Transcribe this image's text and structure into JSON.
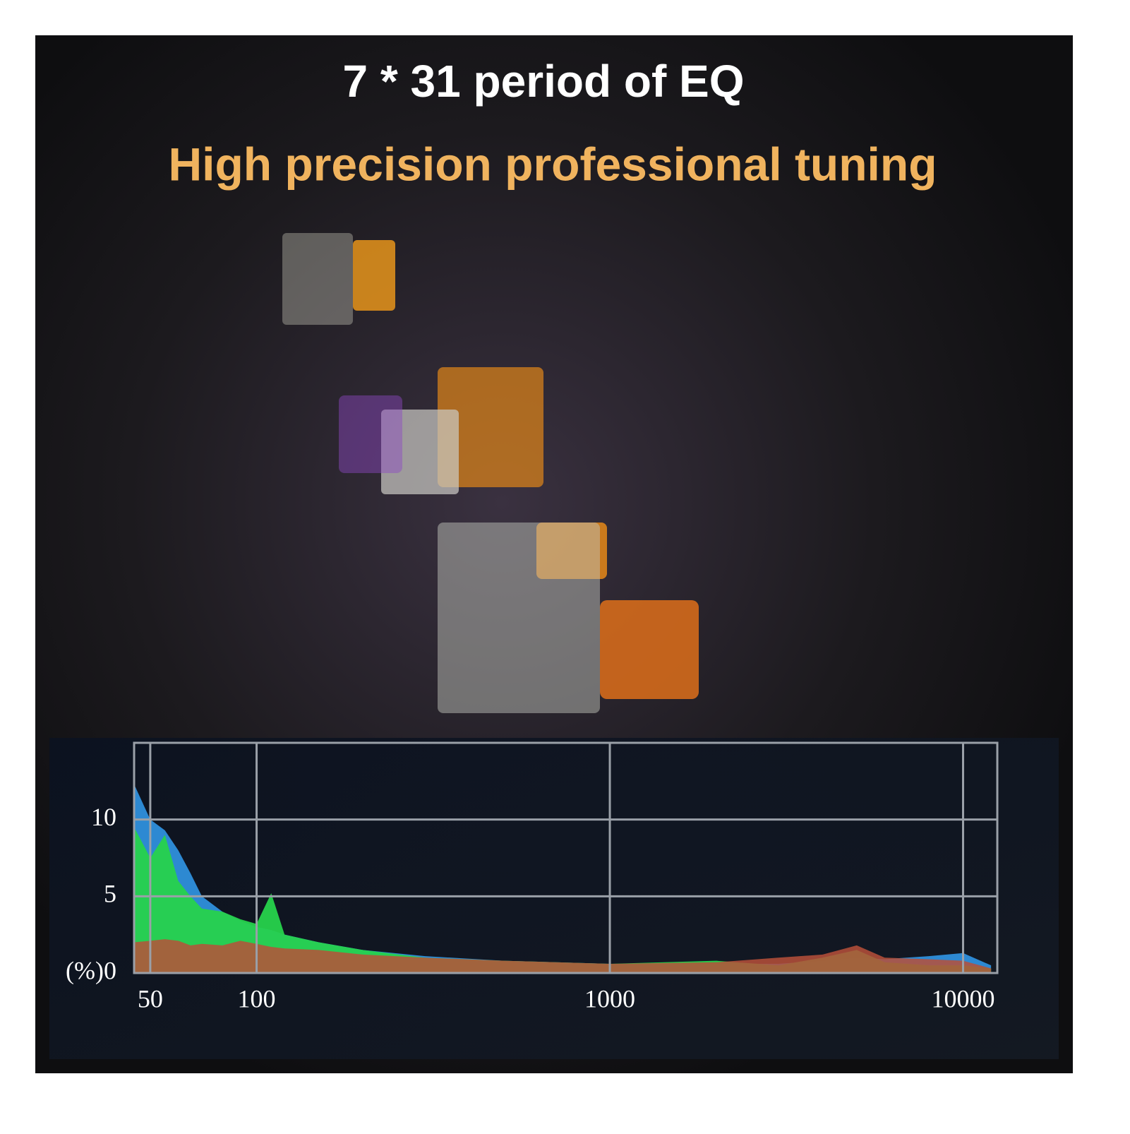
{
  "header": {
    "title": "7 * 31 period of EQ",
    "subtitle": "High precision professional tuning"
  },
  "chart_data": {
    "type": "area",
    "log_x": true,
    "grid": true,
    "x": [
      45,
      50,
      55,
      60,
      65,
      70,
      80,
      90,
      100,
      110,
      120,
      150,
      200,
      300,
      500,
      1000,
      2000,
      3000,
      4000,
      5000,
      6000,
      8000,
      10000,
      12000
    ],
    "series": [
      {
        "name": "blue",
        "color": "#2f8fdc",
        "values": [
          12.3,
          10,
          9.3,
          8,
          6.5,
          5,
          4,
          3.4,
          3,
          2.8,
          2.5,
          2,
          1.5,
          1.1,
          0.8,
          0.6,
          0.6,
          0.6,
          0.8,
          1,
          0.9,
          1.1,
          1.3,
          0.5
        ]
      },
      {
        "name": "green",
        "color": "#27d24c",
        "values": [
          9.5,
          7.5,
          9,
          6,
          5,
          4.2,
          4,
          3.5,
          3.2,
          5.2,
          2.5,
          2,
          1.5,
          1,
          0.8,
          0.6,
          0.8,
          0.5,
          1,
          1.5,
          0.7,
          0.5,
          0.5,
          0.3
        ]
      },
      {
        "name": "red",
        "color": "#b8503a",
        "values": [
          2,
          2.1,
          2.2,
          2.1,
          1.8,
          1.9,
          1.8,
          2.1,
          1.9,
          1.7,
          1.6,
          1.5,
          1.2,
          1,
          0.8,
          0.6,
          0.7,
          1,
          1.2,
          1.8,
          1,
          0.9,
          0.8,
          0.3
        ]
      }
    ],
    "xlim": [
      45,
      12500
    ],
    "xticks": [
      50,
      100,
      1000,
      10000
    ],
    "ylim": [
      0,
      15
    ],
    "yticks": [
      {
        "value": 0,
        "label": "(%)0"
      },
      5,
      10
    ]
  }
}
